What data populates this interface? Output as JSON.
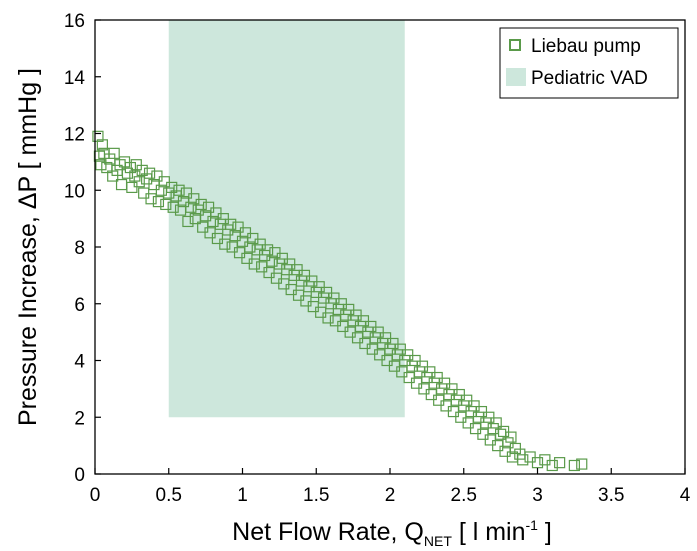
{
  "chart_data": {
    "type": "scatter",
    "title": "",
    "xlabel": "Net Flow Rate, Q",
    "xlabel_subscript": "NET",
    "xlabel_unit_pre": " [ l min",
    "xlabel_unit_sup": "-1",
    "xlabel_unit_post": " ]",
    "ylabel": "Pressure Increase, ΔP [ mmHg ]",
    "xlim": [
      0,
      4
    ],
    "ylim": [
      0,
      16
    ],
    "xticks": [
      0,
      0.5,
      1,
      1.5,
      2,
      2.5,
      3,
      3.5,
      4
    ],
    "xtick_labels": [
      "0",
      "0.5",
      "1",
      "1.5",
      "2",
      "2.5",
      "3",
      "3.5",
      "4"
    ],
    "yticks": [
      0,
      2,
      4,
      6,
      8,
      10,
      12,
      14,
      16
    ],
    "ytick_labels": [
      "0",
      "2",
      "4",
      "6",
      "8",
      "10",
      "12",
      "14",
      "16"
    ],
    "grid": false,
    "legend_position": "top-right",
    "legend": [
      "Liebau pump",
      "Pediatric VAD"
    ],
    "colors": {
      "marker": "#5a9a4a",
      "region": "#cde7dc"
    },
    "region": {
      "name": "Pediatric VAD",
      "x": [
        0.5,
        2.1
      ],
      "y": [
        2,
        16
      ]
    },
    "series": [
      {
        "name": "Liebau pump",
        "marker": "open-square",
        "points": [
          [
            0.02,
            11.9
          ],
          [
            0.03,
            11.2
          ],
          [
            0.04,
            10.9
          ],
          [
            0.05,
            11.6
          ],
          [
            0.06,
            11.3
          ],
          [
            0.08,
            10.8
          ],
          [
            0.1,
            11.1
          ],
          [
            0.12,
            10.5
          ],
          [
            0.13,
            11.3
          ],
          [
            0.15,
            10.7
          ],
          [
            0.17,
            10.9
          ],
          [
            0.18,
            10.2
          ],
          [
            0.2,
            11.0
          ],
          [
            0.22,
            10.6
          ],
          [
            0.24,
            10.8
          ],
          [
            0.25,
            10.1
          ],
          [
            0.27,
            10.5
          ],
          [
            0.28,
            10.9
          ],
          [
            0.3,
            10.3
          ],
          [
            0.32,
            10.7
          ],
          [
            0.33,
            9.9
          ],
          [
            0.35,
            10.4
          ],
          [
            0.37,
            10.6
          ],
          [
            0.38,
            9.7
          ],
          [
            0.4,
            10.2
          ],
          [
            0.42,
            10.5
          ],
          [
            0.43,
            9.6
          ],
          [
            0.45,
            10.0
          ],
          [
            0.47,
            10.3
          ],
          [
            0.48,
            9.5
          ],
          [
            0.5,
            9.9
          ],
          [
            0.52,
            10.1
          ],
          [
            0.53,
            9.4
          ],
          [
            0.55,
            9.8
          ],
          [
            0.57,
            10.0
          ],
          [
            0.58,
            9.3
          ],
          [
            0.6,
            9.6
          ],
          [
            0.62,
            9.9
          ],
          [
            0.63,
            8.9
          ],
          [
            0.65,
            9.4
          ],
          [
            0.67,
            9.7
          ],
          [
            0.68,
            9.0
          ],
          [
            0.7,
            9.3
          ],
          [
            0.72,
            9.5
          ],
          [
            0.73,
            8.7
          ],
          [
            0.75,
            9.1
          ],
          [
            0.77,
            9.4
          ],
          [
            0.78,
            8.5
          ],
          [
            0.8,
            8.9
          ],
          [
            0.82,
            9.2
          ],
          [
            0.83,
            8.3
          ],
          [
            0.85,
            8.8
          ],
          [
            0.87,
            9.0
          ],
          [
            0.88,
            8.1
          ],
          [
            0.9,
            8.6
          ],
          [
            0.92,
            8.8
          ],
          [
            0.93,
            8.0
          ],
          [
            0.95,
            8.4
          ],
          [
            0.97,
            8.7
          ],
          [
            0.98,
            7.8
          ],
          [
            1.0,
            8.2
          ],
          [
            1.02,
            8.5
          ],
          [
            1.03,
            7.6
          ],
          [
            1.05,
            8.0
          ],
          [
            1.07,
            8.3
          ],
          [
            1.08,
            7.4
          ],
          [
            1.1,
            7.9
          ],
          [
            1.12,
            8.1
          ],
          [
            1.13,
            7.3
          ],
          [
            1.15,
            7.7
          ],
          [
            1.17,
            7.9
          ],
          [
            1.18,
            7.1
          ],
          [
            1.2,
            7.5
          ],
          [
            1.22,
            7.8
          ],
          [
            1.23,
            6.9
          ],
          [
            1.25,
            7.4
          ],
          [
            1.27,
            7.6
          ],
          [
            1.28,
            6.7
          ],
          [
            1.3,
            7.2
          ],
          [
            1.32,
            7.4
          ],
          [
            1.33,
            6.5
          ],
          [
            1.35,
            7.0
          ],
          [
            1.37,
            7.2
          ],
          [
            1.38,
            6.3
          ],
          [
            1.4,
            6.8
          ],
          [
            1.42,
            7.0
          ],
          [
            1.43,
            6.1
          ],
          [
            1.45,
            6.6
          ],
          [
            1.47,
            6.8
          ],
          [
            1.48,
            5.9
          ],
          [
            1.5,
            6.4
          ],
          [
            1.52,
            6.6
          ],
          [
            1.53,
            5.7
          ],
          [
            1.55,
            6.2
          ],
          [
            1.57,
            6.4
          ],
          [
            1.58,
            5.5
          ],
          [
            1.6,
            6.0
          ],
          [
            1.62,
            6.2
          ],
          [
            1.63,
            5.4
          ],
          [
            1.65,
            5.8
          ],
          [
            1.67,
            6.0
          ],
          [
            1.68,
            5.2
          ],
          [
            1.7,
            5.6
          ],
          [
            1.72,
            5.8
          ],
          [
            1.73,
            5.0
          ],
          [
            1.75,
            5.4
          ],
          [
            1.77,
            5.6
          ],
          [
            1.78,
            4.8
          ],
          [
            1.8,
            5.2
          ],
          [
            1.82,
            5.4
          ],
          [
            1.83,
            4.6
          ],
          [
            1.85,
            5.0
          ],
          [
            1.87,
            5.2
          ],
          [
            1.88,
            4.4
          ],
          [
            1.9,
            4.8
          ],
          [
            1.92,
            5.0
          ],
          [
            1.93,
            4.2
          ],
          [
            1.95,
            4.6
          ],
          [
            1.97,
            4.8
          ],
          [
            1.98,
            4.0
          ],
          [
            2.0,
            4.4
          ],
          [
            2.02,
            4.6
          ],
          [
            2.03,
            3.8
          ],
          [
            2.05,
            4.2
          ],
          [
            2.07,
            4.4
          ],
          [
            2.08,
            3.6
          ],
          [
            2.1,
            4.0
          ],
          [
            2.12,
            4.2
          ],
          [
            2.13,
            3.4
          ],
          [
            2.15,
            3.8
          ],
          [
            2.17,
            4.0
          ],
          [
            2.18,
            3.2
          ],
          [
            2.2,
            3.6
          ],
          [
            2.22,
            3.8
          ],
          [
            2.23,
            3.0
          ],
          [
            2.25,
            3.4
          ],
          [
            2.27,
            3.6
          ],
          [
            2.28,
            2.8
          ],
          [
            2.3,
            3.2
          ],
          [
            2.32,
            3.4
          ],
          [
            2.33,
            2.6
          ],
          [
            2.35,
            3.0
          ],
          [
            2.37,
            3.2
          ],
          [
            2.38,
            2.4
          ],
          [
            2.4,
            2.8
          ],
          [
            2.42,
            3.0
          ],
          [
            2.43,
            2.2
          ],
          [
            2.45,
            2.6
          ],
          [
            2.47,
            2.8
          ],
          [
            2.48,
            2.0
          ],
          [
            2.5,
            2.4
          ],
          [
            2.52,
            2.6
          ],
          [
            2.53,
            1.8
          ],
          [
            2.55,
            2.2
          ],
          [
            2.57,
            2.4
          ],
          [
            2.58,
            1.6
          ],
          [
            2.6,
            2.0
          ],
          [
            2.62,
            2.2
          ],
          [
            2.63,
            1.4
          ],
          [
            2.65,
            1.8
          ],
          [
            2.67,
            2.0
          ],
          [
            2.68,
            1.2
          ],
          [
            2.7,
            1.6
          ],
          [
            2.72,
            1.8
          ],
          [
            2.73,
            1.0
          ],
          [
            2.75,
            1.4
          ],
          [
            2.77,
            1.5
          ],
          [
            2.78,
            0.8
          ],
          [
            2.8,
            1.1
          ],
          [
            2.82,
            1.3
          ],
          [
            2.83,
            0.6
          ],
          [
            2.85,
            0.9
          ],
          [
            2.88,
            0.7
          ],
          [
            2.9,
            0.5
          ],
          [
            2.95,
            0.6
          ],
          [
            3.0,
            0.4
          ],
          [
            3.05,
            0.5
          ],
          [
            3.1,
            0.3
          ],
          [
            3.15,
            0.4
          ],
          [
            3.25,
            0.3
          ],
          [
            3.3,
            0.35
          ]
        ]
      }
    ]
  }
}
